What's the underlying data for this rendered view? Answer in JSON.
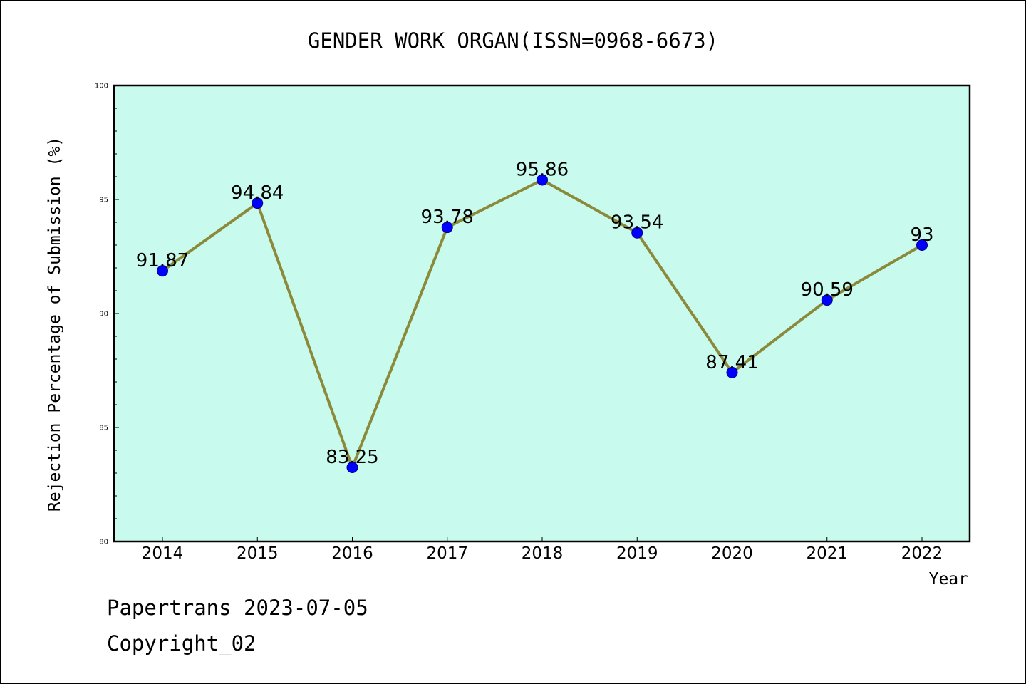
{
  "chart_data": {
    "type": "line",
    "title": "GENDER WORK ORGAN(ISSN=0968-6673)",
    "xlabel": "Year",
    "ylabel": "Rejection Percentage of Submission (%)",
    "categories": [
      "2014",
      "2015",
      "2016",
      "2017",
      "2018",
      "2019",
      "2020",
      "2021",
      "2022"
    ],
    "values": [
      91.87,
      94.84,
      83.25,
      93.78,
      95.86,
      93.54,
      87.41,
      90.59,
      93
    ],
    "data_labels": [
      "91.87",
      "94.84",
      "83.25",
      "93.78",
      "95.86",
      "93.54",
      "87.41",
      "90.59",
      "93"
    ],
    "ylim": [
      80,
      100
    ],
    "yticks": [
      "80",
      "85",
      "90",
      "95",
      "100"
    ],
    "grid": false,
    "legend": "none",
    "colors": {
      "plot_background": "#c8fbee",
      "line": "#8b8a3a",
      "marker": "#0000ff",
      "marker_edge": "#00008b"
    }
  },
  "footer": {
    "line1": "Papertrans 2023-07-05",
    "line2": "Copyright_02"
  }
}
